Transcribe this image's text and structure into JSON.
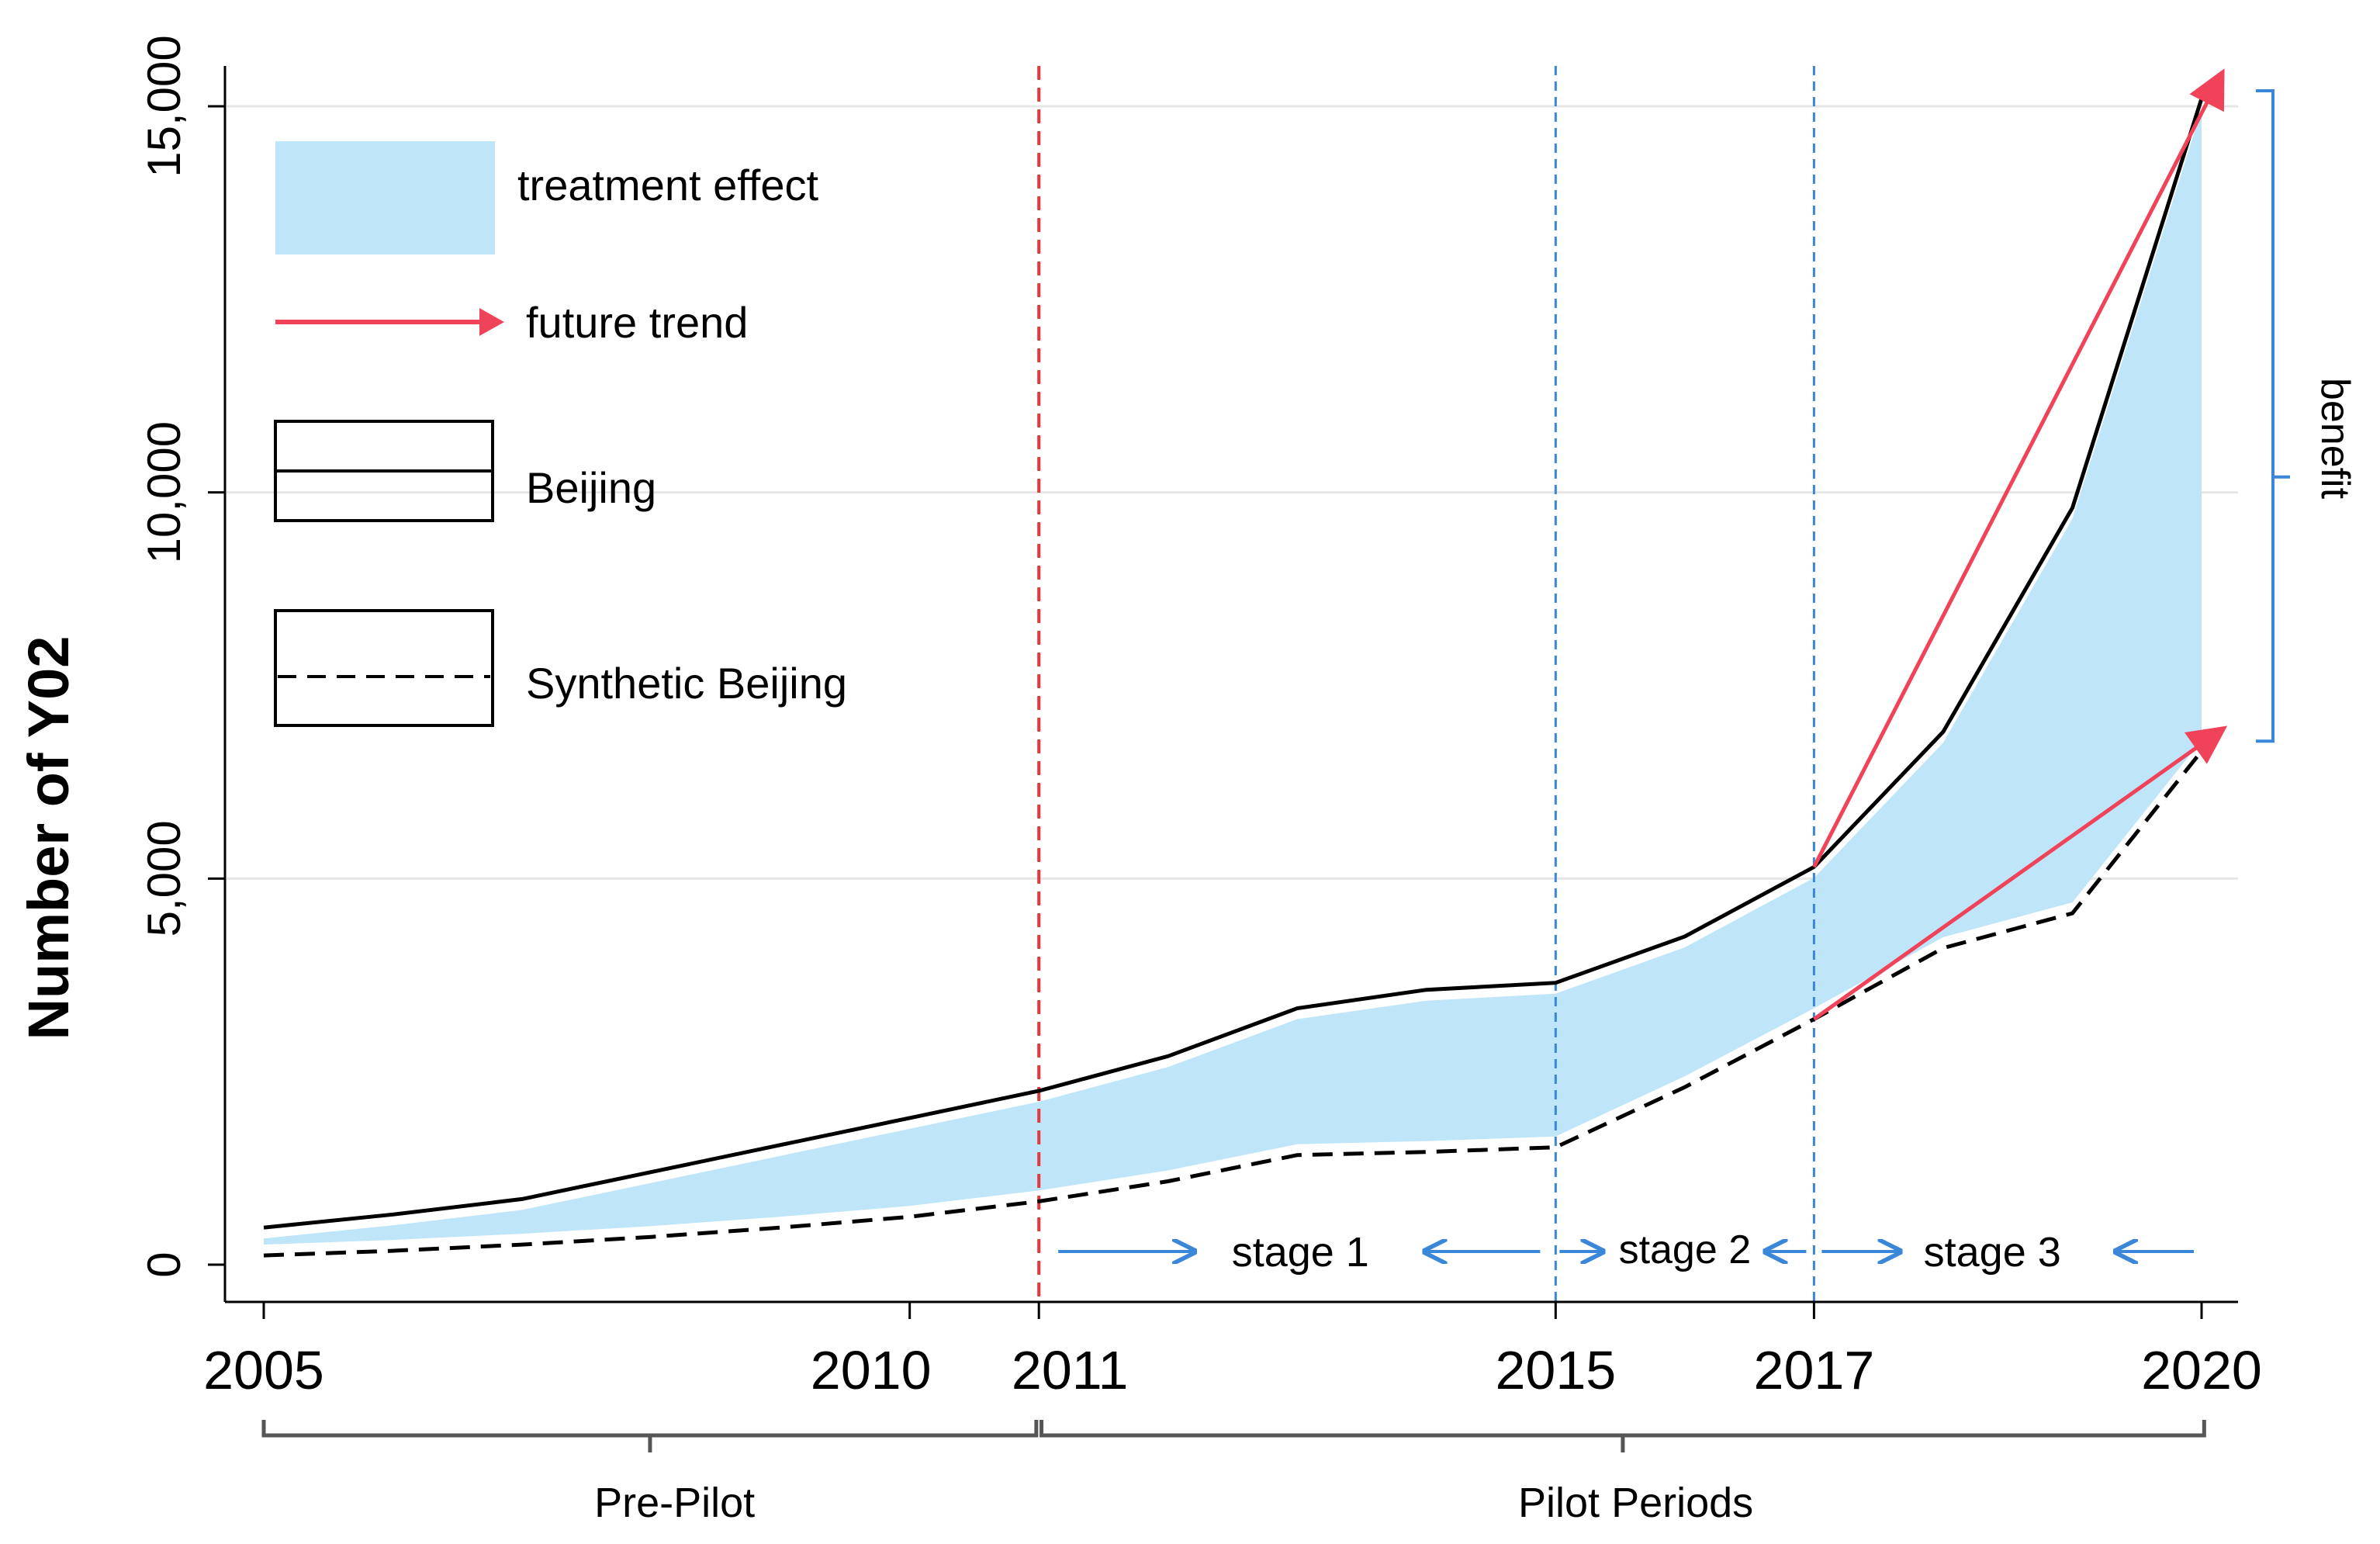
{
  "chart_data": {
    "type": "line",
    "title": "",
    "xlabel": "",
    "ylabel": "Number of Y02",
    "xlim": [
      2005,
      2020
    ],
    "ylim": [
      0,
      15000
    ],
    "x_ticks": [
      "2005",
      "2010",
      "2011",
      "2015",
      "2017",
      "2020"
    ],
    "y_ticks": [
      "0",
      "5,000",
      "10,000",
      "15,000"
    ],
    "y_tick_values": [
      0,
      5000,
      10000,
      15000
    ],
    "grid": true,
    "x": [
      2005,
      2006,
      2007,
      2008,
      2009,
      2010,
      2011,
      2012,
      2013,
      2014,
      2015,
      2016,
      2017,
      2018,
      2019,
      2020
    ],
    "series": [
      {
        "name": "Beijing",
        "style": "solid",
        "color": "#000000",
        "values": [
          480,
          650,
          850,
          1200,
          1550,
          1900,
          2250,
          2700,
          3320,
          3560,
          3650,
          4250,
          5150,
          6900,
          9800,
          15100
        ]
      },
      {
        "name": "Synthetic Beijing",
        "style": "dashed",
        "color": "#000000",
        "values": [
          120,
          180,
          260,
          360,
          480,
          620,
          820,
          1080,
          1420,
          1460,
          1520,
          2300,
          3180,
          4100,
          4550,
          6650
        ]
      }
    ],
    "shaded_region": {
      "label": "treatment effect",
      "between": [
        "Synthetic Beijing",
        "Beijing"
      ],
      "color": "#bfe6f8"
    },
    "legend": {
      "position": "top-left",
      "items": [
        {
          "label": "treatment effect",
          "kind": "area"
        },
        {
          "label": "future trend",
          "kind": "arrow"
        },
        {
          "label": "Beijing",
          "kind": "solid-line"
        },
        {
          "label": "Synthetic Beijing",
          "kind": "dashed-line"
        }
      ]
    },
    "vertical_lines": [
      {
        "x": 2011,
        "color": "#e8363f",
        "style": "dashed"
      },
      {
        "x": 2015,
        "color": "#3a86d8",
        "style": "dashed"
      },
      {
        "x": 2017,
        "color": "#3a86d8",
        "style": "dashed"
      }
    ],
    "trend_arrows": [
      {
        "from": [
          2017,
          5150
        ],
        "to": [
          2020.15,
          15400
        ],
        "color": "#f0435a"
      },
      {
        "from": [
          2017,
          3180
        ],
        "to": [
          2020.15,
          6920
        ],
        "color": "#f0435a"
      }
    ],
    "stages": [
      {
        "label": "stage 1",
        "from": 2011,
        "to": 2015
      },
      {
        "label": "stage 2",
        "from": 2015,
        "to": 2017
      },
      {
        "label": "stage 3",
        "from": 2017,
        "to": 2020
      }
    ],
    "periods": [
      {
        "label": "Pre-Pilot",
        "from": 2005,
        "to": 2011
      },
      {
        "label": "Pilot Periods",
        "from": 2011,
        "to": 2020
      }
    ],
    "annotations": [
      {
        "label": "benefit",
        "from": 6900,
        "to": 15100
      }
    ]
  }
}
